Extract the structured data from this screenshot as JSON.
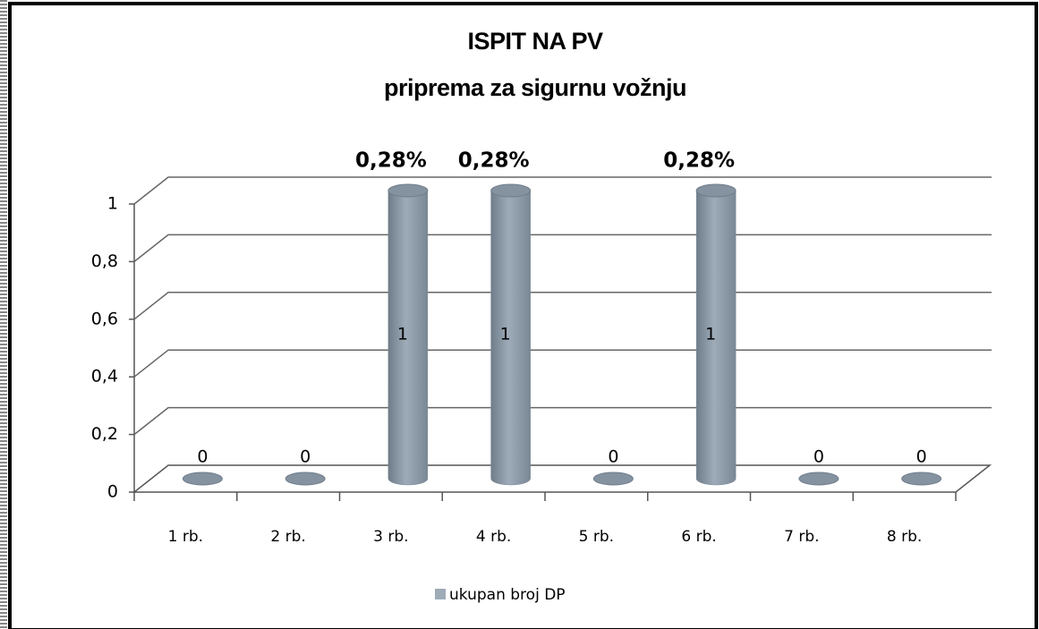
{
  "chart_data": {
    "type": "bar3d",
    "title": "ISPIT NA PV",
    "subtitle": "priprema za sigurnu vožnju",
    "categories": [
      "1 rb.",
      "2 rb.",
      "3 rb.",
      "4 rb.",
      "5 rb.",
      "6 rb.",
      "7 rb.",
      "8 rb."
    ],
    "series": [
      {
        "name": "ukupan broj DP",
        "color": "#9eabb8",
        "values": [
          0,
          0,
          1,
          1,
          0,
          1,
          0,
          0
        ]
      }
    ],
    "percent_labels": [
      null,
      null,
      "0,28%",
      "0,28%",
      null,
      "0,28%",
      null,
      null
    ],
    "ylim": [
      0,
      1
    ],
    "yticks": [
      0,
      {
        "value": 0.2,
        "label": "0,2"
      },
      {
        "value": 0.4,
        "label": "0,4"
      },
      {
        "value": 0.6,
        "label": "0,6"
      },
      {
        "value": 0.8,
        "label": "0,8"
      },
      1
    ],
    "grid": true,
    "legend": "bottom"
  }
}
